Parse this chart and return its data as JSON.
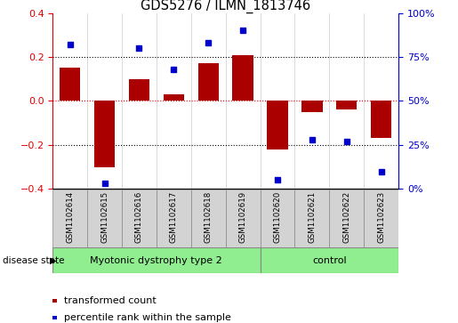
{
  "title": "GDS5276 / ILMN_1813746",
  "samples": [
    "GSM1102614",
    "GSM1102615",
    "GSM1102616",
    "GSM1102617",
    "GSM1102618",
    "GSM1102619",
    "GSM1102620",
    "GSM1102621",
    "GSM1102622",
    "GSM1102623"
  ],
  "transformed_count": [
    0.15,
    -0.3,
    0.1,
    0.03,
    0.17,
    0.21,
    -0.22,
    -0.05,
    -0.04,
    -0.17
  ],
  "percentile_rank": [
    82,
    3,
    80,
    68,
    83,
    90,
    5,
    28,
    27,
    10
  ],
  "groups": [
    {
      "label": "Myotonic dystrophy type 2",
      "start": 0,
      "end": 6,
      "color": "#90EE90"
    },
    {
      "label": "control",
      "start": 6,
      "end": 10,
      "color": "#90EE90"
    }
  ],
  "bar_color": "#AA0000",
  "dot_color": "#0000CC",
  "ylim_left": [
    -0.4,
    0.4
  ],
  "ylim_right": [
    0,
    100
  ],
  "yticks_left": [
    -0.4,
    -0.2,
    0.0,
    0.2,
    0.4
  ],
  "yticks_right": [
    0,
    25,
    50,
    75,
    100
  ],
  "ytick_labels_right": [
    "0%",
    "25%",
    "50%",
    "75%",
    "100%"
  ],
  "hline_color": "#DD0000",
  "dotted_line_color": "black",
  "background_color": "#ffffff",
  "disease_state_label": "disease state",
  "legend_items": [
    "transformed count",
    "percentile rank within the sample"
  ],
  "label_box_color": "#d3d3d3",
  "n_disease": 6,
  "n_control": 4
}
